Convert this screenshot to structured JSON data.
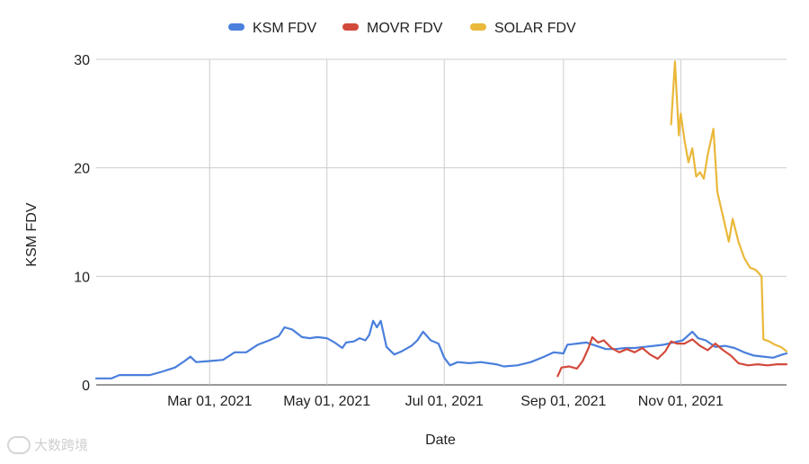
{
  "chart_data": {
    "type": "line",
    "title": "",
    "xlabel": "Date",
    "ylabel": "KSM FDV",
    "ylim": [
      0,
      30
    ],
    "yticks": [
      0,
      10,
      20,
      30
    ],
    "xlim": [
      "2021-01-01",
      "2021-12-26"
    ],
    "xticks": [
      "2021-03-01",
      "2021-05-01",
      "2021-07-01",
      "2021-09-01",
      "2021-11-01"
    ],
    "xtick_labels": [
      "Mar 01, 2021",
      "May 01, 2021",
      "Jul 01, 2021",
      "Sep 01, 2021",
      "Nov 01, 2021"
    ],
    "grid": true,
    "legend_position": "top-center",
    "series": [
      {
        "name": "KSM FDV",
        "color": "#4a7fdc",
        "points": [
          [
            "2021-01-01",
            0.6
          ],
          [
            "2021-01-09",
            0.6
          ],
          [
            "2021-01-13",
            0.9
          ],
          [
            "2021-01-21",
            0.9
          ],
          [
            "2021-01-29",
            0.9
          ],
          [
            "2021-02-04",
            1.2
          ],
          [
            "2021-02-11",
            1.6
          ],
          [
            "2021-02-16",
            2.2
          ],
          [
            "2021-02-19",
            2.6
          ],
          [
            "2021-02-22",
            2.1
          ],
          [
            "2021-03-01",
            2.2
          ],
          [
            "2021-03-08",
            2.3
          ],
          [
            "2021-03-14",
            3.0
          ],
          [
            "2021-03-20",
            3.0
          ],
          [
            "2021-03-26",
            3.7
          ],
          [
            "2021-04-01",
            4.1
          ],
          [
            "2021-04-06",
            4.5
          ],
          [
            "2021-04-09",
            5.3
          ],
          [
            "2021-04-13",
            5.1
          ],
          [
            "2021-04-18",
            4.4
          ],
          [
            "2021-04-22",
            4.3
          ],
          [
            "2021-04-26",
            4.4
          ],
          [
            "2021-05-01",
            4.3
          ],
          [
            "2021-05-05",
            3.9
          ],
          [
            "2021-05-09",
            3.4
          ],
          [
            "2021-05-11",
            3.9
          ],
          [
            "2021-05-15",
            4.0
          ],
          [
            "2021-05-18",
            4.3
          ],
          [
            "2021-05-21",
            4.1
          ],
          [
            "2021-05-23",
            4.6
          ],
          [
            "2021-05-25",
            5.9
          ],
          [
            "2021-05-27",
            5.3
          ],
          [
            "2021-05-29",
            5.9
          ],
          [
            "2021-06-01",
            3.5
          ],
          [
            "2021-06-05",
            2.8
          ],
          [
            "2021-06-09",
            3.1
          ],
          [
            "2021-06-14",
            3.6
          ],
          [
            "2021-06-17",
            4.1
          ],
          [
            "2021-06-20",
            4.9
          ],
          [
            "2021-06-24",
            4.1
          ],
          [
            "2021-06-28",
            3.8
          ],
          [
            "2021-07-01",
            2.5
          ],
          [
            "2021-07-04",
            1.8
          ],
          [
            "2021-07-08",
            2.1
          ],
          [
            "2021-07-14",
            2.0
          ],
          [
            "2021-07-20",
            2.1
          ],
          [
            "2021-07-28",
            1.9
          ],
          [
            "2021-08-01",
            1.7
          ],
          [
            "2021-08-08",
            1.8
          ],
          [
            "2021-08-15",
            2.1
          ],
          [
            "2021-08-22",
            2.6
          ],
          [
            "2021-08-27",
            3.0
          ],
          [
            "2021-09-01",
            2.9
          ],
          [
            "2021-09-03",
            3.7
          ],
          [
            "2021-09-08",
            3.8
          ],
          [
            "2021-09-13",
            3.9
          ],
          [
            "2021-09-18",
            3.6
          ],
          [
            "2021-09-23",
            3.3
          ],
          [
            "2021-09-28",
            3.3
          ],
          [
            "2021-10-03",
            3.4
          ],
          [
            "2021-10-08",
            3.4
          ],
          [
            "2021-10-13",
            3.5
          ],
          [
            "2021-10-18",
            3.6
          ],
          [
            "2021-10-23",
            3.7
          ],
          [
            "2021-10-28",
            3.9
          ],
          [
            "2021-11-02",
            4.1
          ],
          [
            "2021-11-07",
            4.9
          ],
          [
            "2021-11-10",
            4.3
          ],
          [
            "2021-11-14",
            4.1
          ],
          [
            "2021-11-19",
            3.5
          ],
          [
            "2021-11-24",
            3.6
          ],
          [
            "2021-11-29",
            3.4
          ],
          [
            "2021-12-04",
            3.0
          ],
          [
            "2021-12-09",
            2.7
          ],
          [
            "2021-12-14",
            2.6
          ],
          [
            "2021-12-19",
            2.5
          ],
          [
            "2021-12-24",
            2.8
          ],
          [
            "2021-12-26",
            2.9
          ]
        ]
      },
      {
        "name": "MOVR FDV",
        "color": "#d24a3c",
        "points": [
          [
            "2021-08-29",
            0.8
          ],
          [
            "2021-08-31",
            1.6
          ],
          [
            "2021-09-04",
            1.7
          ],
          [
            "2021-09-08",
            1.5
          ],
          [
            "2021-09-11",
            2.2
          ],
          [
            "2021-09-14",
            3.4
          ],
          [
            "2021-09-16",
            4.4
          ],
          [
            "2021-09-19",
            3.9
          ],
          [
            "2021-09-22",
            4.1
          ],
          [
            "2021-09-26",
            3.4
          ],
          [
            "2021-09-30",
            3.0
          ],
          [
            "2021-10-04",
            3.3
          ],
          [
            "2021-10-08",
            3.0
          ],
          [
            "2021-10-12",
            3.4
          ],
          [
            "2021-10-16",
            2.8
          ],
          [
            "2021-10-20",
            2.4
          ],
          [
            "2021-10-24",
            3.1
          ],
          [
            "2021-10-27",
            4.0
          ],
          [
            "2021-10-30",
            3.8
          ],
          [
            "2021-11-03",
            3.8
          ],
          [
            "2021-11-07",
            4.2
          ],
          [
            "2021-11-11",
            3.6
          ],
          [
            "2021-11-15",
            3.2
          ],
          [
            "2021-11-19",
            3.8
          ],
          [
            "2021-11-23",
            3.2
          ],
          [
            "2021-11-27",
            2.7
          ],
          [
            "2021-12-01",
            2.0
          ],
          [
            "2021-12-06",
            1.8
          ],
          [
            "2021-12-11",
            1.9
          ],
          [
            "2021-12-16",
            1.8
          ],
          [
            "2021-12-21",
            1.9
          ],
          [
            "2021-12-26",
            1.9
          ]
        ]
      },
      {
        "name": "SOLAR FDV",
        "color": "#eab83a",
        "points": [
          [
            "2021-10-27",
            24.0
          ],
          [
            "2021-10-29",
            29.8
          ],
          [
            "2021-10-31",
            23.0
          ],
          [
            "2021-11-01",
            25.0
          ],
          [
            "2021-11-03",
            22.5
          ],
          [
            "2021-11-05",
            20.5
          ],
          [
            "2021-11-07",
            21.8
          ],
          [
            "2021-11-09",
            19.2
          ],
          [
            "2021-11-11",
            19.6
          ],
          [
            "2021-11-13",
            19.0
          ],
          [
            "2021-11-15",
            21.2
          ],
          [
            "2021-11-18",
            23.6
          ],
          [
            "2021-11-20",
            17.8
          ],
          [
            "2021-11-23",
            15.5
          ],
          [
            "2021-11-26",
            13.2
          ],
          [
            "2021-11-28",
            15.3
          ],
          [
            "2021-12-01",
            13.2
          ],
          [
            "2021-12-04",
            11.7
          ],
          [
            "2021-12-07",
            10.8
          ],
          [
            "2021-12-10",
            10.6
          ],
          [
            "2021-12-13",
            10.0
          ],
          [
            "2021-12-14",
            4.2
          ],
          [
            "2021-12-17",
            4.0
          ],
          [
            "2021-12-20",
            3.7
          ],
          [
            "2021-12-23",
            3.5
          ],
          [
            "2021-12-26",
            3.1
          ]
        ]
      }
    ]
  },
  "watermark": {
    "text": "大数跨境"
  }
}
